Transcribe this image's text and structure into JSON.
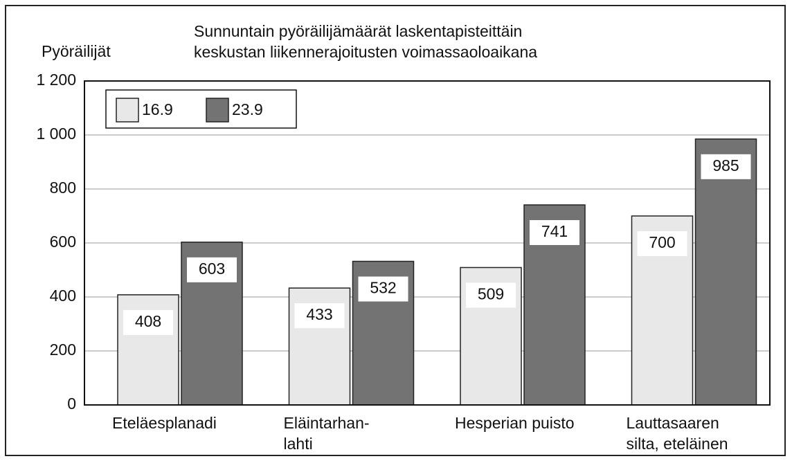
{
  "chart_data": {
    "type": "bar",
    "title": "Sunnuntain pyöräilijämäärät laskentapisteittäin\nkeskustan liikennerajoitusten voimassaoloaikana",
    "y_label": "Pyöräilijät",
    "categories": [
      "Eteläesplanadi",
      "Eläintarhan-\nlahti",
      "Hesperian puisto",
      "Lauttasaaren\nsilta, eteläinen"
    ],
    "series": [
      {
        "name": "16.9",
        "color": "#e8e8e8",
        "values": [
          408,
          433,
          509,
          700
        ]
      },
      {
        "name": "23.9",
        "color": "#737373",
        "values": [
          603,
          532,
          741,
          985
        ]
      }
    ],
    "ylim": [
      0,
      1200
    ],
    "yticks": [
      0,
      200,
      400,
      600,
      800,
      {
        "value": 1000,
        "label": "1 000"
      },
      {
        "value": 1200,
        "label": "1 200"
      }
    ],
    "grid": true,
    "legend": "top-left"
  }
}
